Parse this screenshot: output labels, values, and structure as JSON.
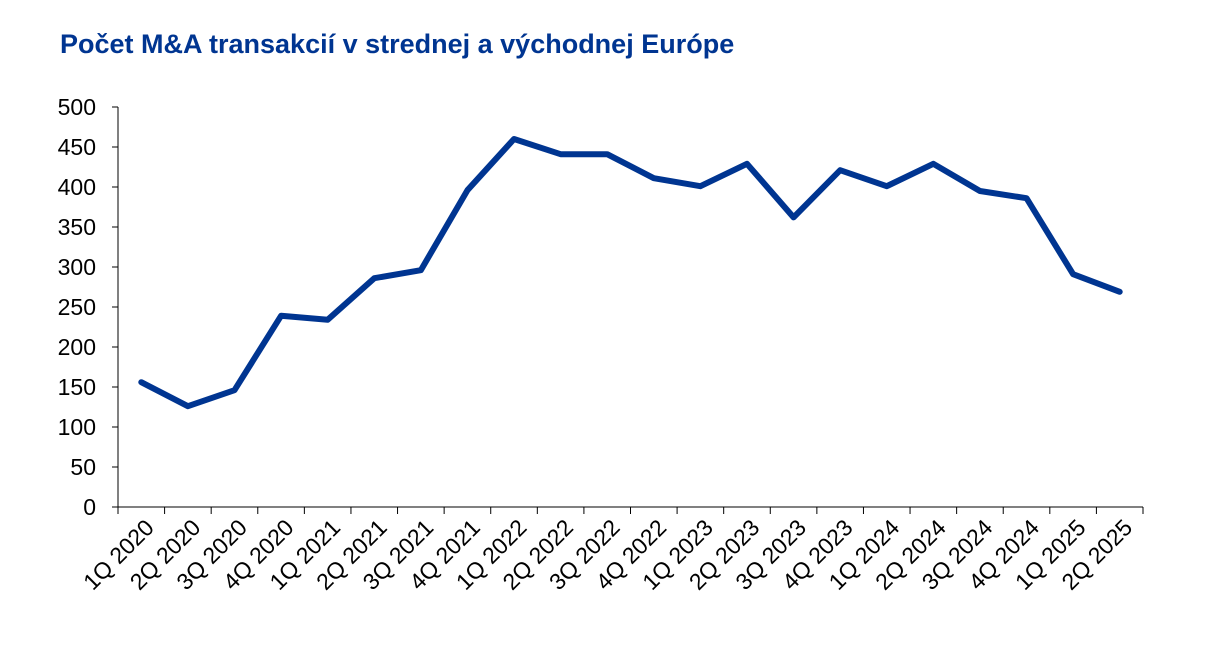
{
  "chart_data": {
    "type": "line",
    "title": "Počet M&A transakcií v strednej a východnej Európe",
    "categories": [
      "1Q 2020",
      "2Q 2020",
      "3Q 2020",
      "4Q 2020",
      "1Q 2021",
      "2Q 2021",
      "3Q 2021",
      "4Q 2021",
      "1Q 2022",
      "2Q 2022",
      "3Q 2022",
      "4Q 2022",
      "1Q 2023",
      "2Q 2023",
      "3Q 2023",
      "4Q 2023",
      "1Q 2024",
      "2Q 2024",
      "3Q 2024",
      "4Q 2024",
      "1Q 2025",
      "2Q 2025"
    ],
    "values": [
      156,
      126,
      146,
      239,
      234,
      286,
      296,
      396,
      460,
      441,
      441,
      411,
      401,
      429,
      362,
      421,
      401,
      429,
      395,
      386,
      291,
      269
    ],
    "color": "#003591",
    "ylim": [
      0,
      500
    ],
    "yticks": [
      0,
      50,
      100,
      150,
      200,
      250,
      300,
      350,
      400,
      450,
      500
    ],
    "grid": false
  }
}
